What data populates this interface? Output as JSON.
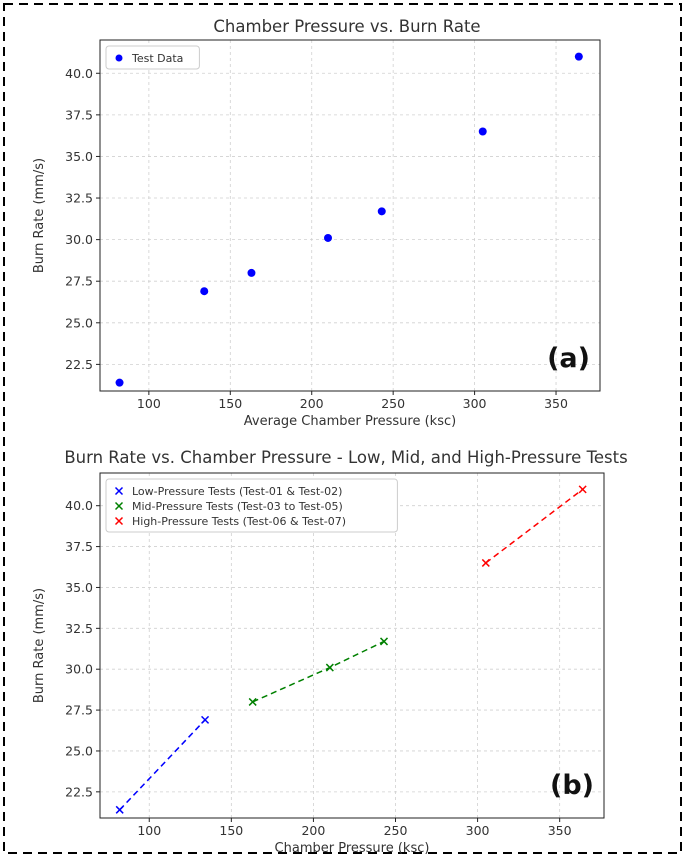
{
  "chart_data": [
    {
      "type": "scatter",
      "panel_label": "(a)",
      "title": "Chamber Pressure vs. Burn Rate",
      "xlabel": "Average Chamber Pressure (ksc)",
      "ylabel": "Burn Rate (mm/s)",
      "xlim": [
        70,
        377
      ],
      "ylim": [
        20.9,
        42.0
      ],
      "xticks": [
        100,
        150,
        200,
        250,
        300,
        350
      ],
      "yticks": [
        22.5,
        25.0,
        27.5,
        30.0,
        32.5,
        35.0,
        37.5,
        40.0
      ],
      "grid": true,
      "legend_position": "top-left",
      "series": [
        {
          "name": "Test Data",
          "color": "#0000ff",
          "marker": "circle",
          "x": [
            82,
            134,
            163,
            210,
            243,
            305,
            364
          ],
          "y": [
            21.4,
            26.9,
            28.0,
            30.1,
            31.7,
            36.5,
            41.0
          ]
        }
      ]
    },
    {
      "type": "line",
      "panel_label": "(b)",
      "title": "Burn Rate vs. Chamber Pressure - Low, Mid, and High-Pressure Tests",
      "xlabel": "Chamber Pressure (ksc)",
      "ylabel": "Burn Rate (mm/s)",
      "xlim": [
        70,
        377
      ],
      "ylim": [
        20.9,
        42.0
      ],
      "xticks": [
        100,
        150,
        200,
        250,
        300,
        350
      ],
      "yticks": [
        22.5,
        25.0,
        27.5,
        30.0,
        32.5,
        35.0,
        37.5,
        40.0
      ],
      "grid": true,
      "legend_position": "top-left",
      "line_style": "dashed",
      "series": [
        {
          "name": "Low-Pressure Tests (Test-01 & Test-02)",
          "color": "#0000ff",
          "marker": "x",
          "x": [
            82,
            134
          ],
          "y": [
            21.4,
            26.9
          ]
        },
        {
          "name": "Mid-Pressure Tests (Test-03 to Test-05)",
          "color": "#008000",
          "marker": "x",
          "x": [
            163,
            210,
            243
          ],
          "y": [
            28.0,
            30.1,
            31.7
          ]
        },
        {
          "name": "High-Pressure Tests (Test-06 & Test-07)",
          "color": "#ff0000",
          "marker": "x",
          "x": [
            305,
            364
          ],
          "y": [
            36.5,
            41.0
          ]
        }
      ]
    }
  ]
}
